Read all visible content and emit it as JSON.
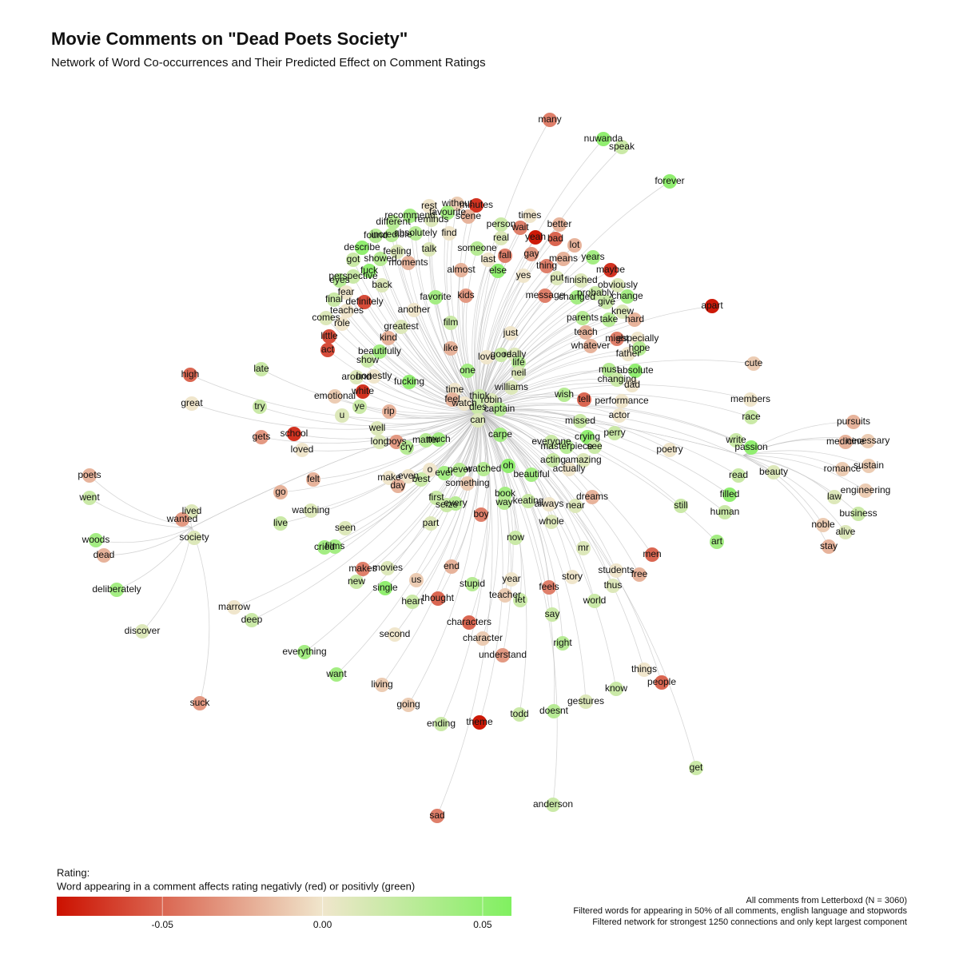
{
  "header": {
    "title": "Movie Comments on \"Dead Poets Society\"",
    "subtitle": "Network of Word Co-occurrences and Their Predicted Effect on Comment Ratings"
  },
  "legend": {
    "title": "Rating:",
    "description": "Word appearing in a comment affects rating negativly (red) or positivly (green)",
    "range": [
      -0.083,
      0.059
    ],
    "ticks": [
      -0.05,
      {
        "value": 0,
        "label": "0.00"
      },
      0.05
    ],
    "colors": [
      "#cc1100",
      "#f0e6cc",
      "#80f060"
    ]
  },
  "nodes": [
    {
      "label": "many",
      "value": -0.04
    },
    {
      "label": "nuwanda",
      "value": 0.05
    },
    {
      "label": "speak",
      "value": 0.02
    },
    {
      "label": "forever",
      "value": 0.05
    },
    {
      "label": "without",
      "value": -0.01
    },
    {
      "label": "minutes",
      "value": -0.07
    },
    {
      "label": "rest",
      "value": 0
    },
    {
      "label": "favourite",
      "value": 0.04
    },
    {
      "label": "recommend",
      "value": 0.04
    },
    {
      "label": "scene",
      "value": -0.02
    },
    {
      "label": "times",
      "value": 0
    },
    {
      "label": "reminds",
      "value": 0.01
    },
    {
      "label": "different",
      "value": 0.03
    },
    {
      "label": "person",
      "value": 0.02
    },
    {
      "label": "wait",
      "value": -0.04
    },
    {
      "label": "better",
      "value": -0.02
    },
    {
      "label": "absolutely",
      "value": 0.03
    },
    {
      "label": "find",
      "value": 0
    },
    {
      "label": "found",
      "value": 0.03
    },
    {
      "label": "incredible",
      "value": 0.03
    },
    {
      "label": "yeah",
      "value": -0.08
    },
    {
      "label": "bad",
      "value": -0.05
    },
    {
      "label": "real",
      "value": 0.01
    },
    {
      "label": "lot",
      "value": -0.02
    },
    {
      "label": "describe",
      "value": 0.05
    },
    {
      "label": "talk",
      "value": 0.01
    },
    {
      "label": "someone",
      "value": 0.03
    },
    {
      "label": "feeling",
      "value": 0.01
    },
    {
      "label": "years",
      "value": 0.04
    },
    {
      "label": "means",
      "value": -0.02
    },
    {
      "label": "fall",
      "value": -0.04
    },
    {
      "label": "gay",
      "value": -0.03
    },
    {
      "label": "last",
      "value": 0
    },
    {
      "label": "got",
      "value": 0.02
    },
    {
      "label": "showed",
      "value": 0.03
    },
    {
      "label": "moments",
      "value": -0.02
    },
    {
      "label": "maybe",
      "value": -0.07
    },
    {
      "label": "fuck",
      "value": 0.05
    },
    {
      "label": "perspective",
      "value": 0.02
    },
    {
      "label": "eyes",
      "value": 0.03
    },
    {
      "label": "thing",
      "value": -0.04
    },
    {
      "label": "almost",
      "value": -0.02
    },
    {
      "label": "else",
      "value": 0.05
    },
    {
      "label": "yes",
      "value": 0
    },
    {
      "label": "put",
      "value": 0.01
    },
    {
      "label": "finished",
      "value": 0.01
    },
    {
      "label": "back",
      "value": 0.01
    },
    {
      "label": "obviously",
      "value": 0.01
    },
    {
      "label": "fear",
      "value": 0
    },
    {
      "label": "kids",
      "value": -0.03
    },
    {
      "label": "message",
      "value": -0.04
    },
    {
      "label": "changed",
      "value": 0.04
    },
    {
      "label": "probably",
      "value": 0.02
    },
    {
      "label": "change",
      "value": 0.04
    },
    {
      "label": "favorite",
      "value": 0.04
    },
    {
      "label": "final",
      "value": 0.02
    },
    {
      "label": "definitely",
      "value": -0.06
    },
    {
      "label": "give",
      "value": 0.02
    },
    {
      "label": "teaches",
      "value": 0
    },
    {
      "label": "another",
      "value": 0
    },
    {
      "label": "knew",
      "value": 0.01
    },
    {
      "label": "apart",
      "value": -0.08
    },
    {
      "label": "comes",
      "value": 0.01
    },
    {
      "label": "parents",
      "value": 0.03
    },
    {
      "label": "take",
      "value": 0.03
    },
    {
      "label": "hard",
      "value": -0.02
    },
    {
      "label": "role",
      "value": 0
    },
    {
      "label": "greatest",
      "value": 0.01
    },
    {
      "label": "film",
      "value": 0.02
    },
    {
      "label": "teach",
      "value": -0.02
    },
    {
      "label": "might",
      "value": -0.04
    },
    {
      "label": "especially",
      "value": 0
    },
    {
      "label": "just",
      "value": 0
    },
    {
      "label": "little",
      "value": -0.06
    },
    {
      "label": "kind",
      "value": -0.02
    },
    {
      "label": "father",
      "value": 0
    },
    {
      "label": "whatever",
      "value": -0.02
    },
    {
      "label": "hope",
      "value": 0.03
    },
    {
      "label": "act",
      "value": -0.06
    },
    {
      "label": "beautifully",
      "value": 0.04
    },
    {
      "label": "like",
      "value": -0.02
    },
    {
      "label": "love",
      "value": 0
    },
    {
      "label": "good",
      "value": 0.02
    },
    {
      "label": "really",
      "value": 0.01
    },
    {
      "label": "show",
      "value": 0.02
    },
    {
      "label": "life",
      "value": 0.03
    },
    {
      "label": "cute",
      "value": -0.01
    },
    {
      "label": "must",
      "value": 0.03
    },
    {
      "label": "absolute",
      "value": 0.05
    },
    {
      "label": "neil",
      "value": 0.01
    },
    {
      "label": "one",
      "value": 0.04
    },
    {
      "label": "late",
      "value": 0.02
    },
    {
      "label": "around",
      "value": 0.01
    },
    {
      "label": "honestly",
      "value": 0
    },
    {
      "label": "high",
      "value": -0.05
    },
    {
      "label": "changing",
      "value": 0.02
    },
    {
      "label": "dad",
      "value": 0
    },
    {
      "label": "fucking",
      "value": 0.05
    },
    {
      "label": "emotional",
      "value": -0.01
    },
    {
      "label": "white",
      "value": -0.07
    },
    {
      "label": "time",
      "value": 0
    },
    {
      "label": "williams",
      "value": 0.01
    },
    {
      "label": "wish",
      "value": 0.03
    },
    {
      "label": "tell",
      "value": -0.05
    },
    {
      "label": "think",
      "value": 0.02
    },
    {
      "label": "robin",
      "value": 0.01
    },
    {
      "label": "feel",
      "value": -0.02
    },
    {
      "label": "members",
      "value": 0
    },
    {
      "label": "performance",
      "value": 0
    },
    {
      "label": "great",
      "value": 0
    },
    {
      "label": "try",
      "value": 0.02
    },
    {
      "label": "ye",
      "value": 0.02
    },
    {
      "label": "watch",
      "value": 0
    },
    {
      "label": "dies",
      "value": 0.02
    },
    {
      "label": "captain",
      "value": 0.03
    },
    {
      "label": "rip",
      "value": -0.02
    },
    {
      "label": "u",
      "value": 0.01
    },
    {
      "label": "actor",
      "value": 0
    },
    {
      "label": "race",
      "value": 0.02
    },
    {
      "label": "pursuits",
      "value": -0.02
    },
    {
      "label": "missed",
      "value": 0.02
    },
    {
      "label": "can",
      "value": 0.01
    },
    {
      "label": "well",
      "value": 0.01
    },
    {
      "label": "perry",
      "value": 0.02
    },
    {
      "label": "school",
      "value": -0.07
    },
    {
      "label": "gets",
      "value": -0.03
    },
    {
      "label": "carpe",
      "value": 0.04
    },
    {
      "label": "crying",
      "value": 0.05
    },
    {
      "label": "necessary",
      "value": -0.01
    },
    {
      "label": "medicine",
      "value": -0.02
    },
    {
      "label": "long",
      "value": 0.01
    },
    {
      "label": "boys",
      "value": -0.03
    },
    {
      "label": "cry",
      "value": 0.03
    },
    {
      "label": "matter",
      "value": 0.03
    },
    {
      "label": "much",
      "value": 0.04
    },
    {
      "label": "everyone",
      "value": 0.02
    },
    {
      "label": "write",
      "value": 0.02
    },
    {
      "label": "masterpiece",
      "value": 0.03
    },
    {
      "label": "see",
      "value": 0.02
    },
    {
      "label": "passion",
      "value": 0.05
    },
    {
      "label": "poetry",
      "value": 0
    },
    {
      "label": "loved",
      "value": 0
    },
    {
      "label": "sustain",
      "value": -0.01
    },
    {
      "label": "romance",
      "value": -0.01
    },
    {
      "label": "acting",
      "value": 0.02
    },
    {
      "label": "amazing",
      "value": 0.01
    },
    {
      "label": "beauty",
      "value": 0.01
    },
    {
      "label": "o",
      "value": 0
    },
    {
      "label": "never",
      "value": 0.03
    },
    {
      "label": "watched",
      "value": 0.03
    },
    {
      "label": "oh",
      "value": 0.05
    },
    {
      "label": "actually",
      "value": 0
    },
    {
      "label": "poets",
      "value": -0.02
    },
    {
      "label": "read",
      "value": 0.02
    },
    {
      "label": "make",
      "value": 0
    },
    {
      "label": "even",
      "value": 0
    },
    {
      "label": "ever",
      "value": 0.04
    },
    {
      "label": "best",
      "value": 0.02
    },
    {
      "label": "felt",
      "value": -0.02
    },
    {
      "label": "beautiful",
      "value": 0.04
    },
    {
      "label": "something",
      "value": -0.01
    },
    {
      "label": "day",
      "value": -0.02
    },
    {
      "label": "engineering",
      "value": -0.01
    },
    {
      "label": "went",
      "value": 0.02
    },
    {
      "label": "go",
      "value": -0.02
    },
    {
      "label": "book",
      "value": 0.04
    },
    {
      "label": "filled",
      "value": 0.05
    },
    {
      "label": "dreams",
      "value": -0.02
    },
    {
      "label": "law",
      "value": 0.01
    },
    {
      "label": "keating",
      "value": 0.02
    },
    {
      "label": "first",
      "value": 0.02
    },
    {
      "label": "way",
      "value": 0.03
    },
    {
      "label": "always",
      "value": 0
    },
    {
      "label": "near",
      "value": 0.01
    },
    {
      "label": "seize",
      "value": 0.02
    },
    {
      "label": "every",
      "value": 0.03
    },
    {
      "label": "still",
      "value": 0.02
    },
    {
      "label": "lived",
      "value": 0.01
    },
    {
      "label": "watching",
      "value": 0.01
    },
    {
      "label": "human",
      "value": 0.02
    },
    {
      "label": "business",
      "value": 0.02
    },
    {
      "label": "boy",
      "value": -0.04
    },
    {
      "label": "wanted",
      "value": -0.03
    },
    {
      "label": "live",
      "value": 0.02
    },
    {
      "label": "part",
      "value": 0.01
    },
    {
      "label": "whole",
      "value": 0.01
    },
    {
      "label": "noble",
      "value": -0.01
    },
    {
      "label": "seen",
      "value": 0.01
    },
    {
      "label": "alive",
      "value": 0.01
    },
    {
      "label": "now",
      "value": 0.02
    },
    {
      "label": "society",
      "value": 0.01
    },
    {
      "label": "woods",
      "value": 0.04
    },
    {
      "label": "art",
      "value": 0.04
    },
    {
      "label": "cried",
      "value": 0.04
    },
    {
      "label": "films",
      "value": 0.04
    },
    {
      "label": "stay",
      "value": -0.02
    },
    {
      "label": "mr",
      "value": 0.01
    },
    {
      "label": "dead",
      "value": -0.02
    },
    {
      "label": "men",
      "value": -0.05
    },
    {
      "label": "makes",
      "value": -0.04
    },
    {
      "label": "movies",
      "value": 0.01
    },
    {
      "label": "end",
      "value": -0.02
    },
    {
      "label": "students",
      "value": 0
    },
    {
      "label": "free",
      "value": -0.02
    },
    {
      "label": "new",
      "value": 0.02
    },
    {
      "label": "us",
      "value": -0.01
    },
    {
      "label": "year",
      "value": 0
    },
    {
      "label": "story",
      "value": 0
    },
    {
      "label": "single",
      "value": 0.05
    },
    {
      "label": "stupid",
      "value": 0.03
    },
    {
      "label": "feels",
      "value": -0.04
    },
    {
      "label": "thus",
      "value": 0.01
    },
    {
      "label": "deliberately",
      "value": 0.04
    },
    {
      "label": "teacher",
      "value": -0.01
    },
    {
      "label": "let",
      "value": 0.02
    },
    {
      "label": "heart",
      "value": 0.02
    },
    {
      "label": "thought",
      "value": -0.05
    },
    {
      "label": "world",
      "value": 0.02
    },
    {
      "label": "marrow",
      "value": 0
    },
    {
      "label": "say",
      "value": 0.02
    },
    {
      "label": "deep",
      "value": 0.02
    },
    {
      "label": "characters",
      "value": -0.05
    },
    {
      "label": "discover",
      "value": 0.01
    },
    {
      "label": "second",
      "value": 0
    },
    {
      "label": "character",
      "value": -0.01
    },
    {
      "label": "right",
      "value": 0.03
    },
    {
      "label": "everything",
      "value": 0.04
    },
    {
      "label": "understand",
      "value": -0.03
    },
    {
      "label": "things",
      "value": 0
    },
    {
      "label": "want",
      "value": 0.04
    },
    {
      "label": "people",
      "value": -0.05
    },
    {
      "label": "living",
      "value": -0.01
    },
    {
      "label": "know",
      "value": 0.02
    },
    {
      "label": "suck",
      "value": -0.03
    },
    {
      "label": "going",
      "value": -0.01
    },
    {
      "label": "gestures",
      "value": 0.01
    },
    {
      "label": "doesnt",
      "value": 0.03
    },
    {
      "label": "todd",
      "value": 0.02
    },
    {
      "label": "ending",
      "value": 0.02
    },
    {
      "label": "theme",
      "value": -0.08
    },
    {
      "label": "get",
      "value": 0.02
    },
    {
      "label": "anderson",
      "value": 0.02
    },
    {
      "label": "sad",
      "value": -0.04
    }
  ],
  "notes": [
    "All comments from Letterboxd (N = 3060)",
    "Filtered words for appearing in 50% of all comments, english language and stopwords",
    "Filtered network for strongest 1250 connections and only kept largest component"
  ]
}
